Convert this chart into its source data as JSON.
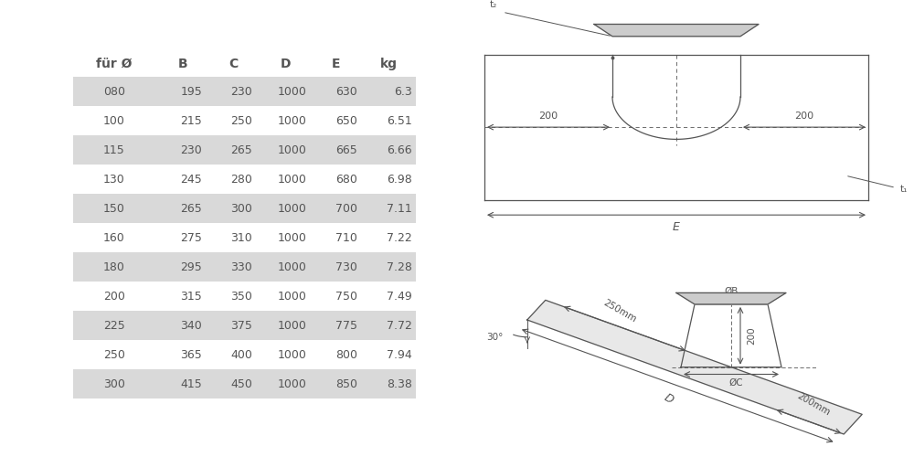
{
  "table_headers": [
    "für Ø",
    "B",
    "C",
    "D",
    "E",
    "kg"
  ],
  "table_rows": [
    [
      "080",
      "195",
      "230",
      "1000",
      "630",
      "6.3"
    ],
    [
      "100",
      "215",
      "250",
      "1000",
      "650",
      "6.51"
    ],
    [
      "115",
      "230",
      "265",
      "1000",
      "665",
      "6.66"
    ],
    [
      "130",
      "245",
      "280",
      "1000",
      "680",
      "6.98"
    ],
    [
      "150",
      "265",
      "300",
      "1000",
      "700",
      "7.11"
    ],
    [
      "160",
      "275",
      "310",
      "1000",
      "710",
      "7.22"
    ],
    [
      "180",
      "295",
      "330",
      "1000",
      "730",
      "7.28"
    ],
    [
      "200",
      "315",
      "350",
      "1000",
      "750",
      "7.49"
    ],
    [
      "225",
      "340",
      "375",
      "1000",
      "775",
      "7.72"
    ],
    [
      "250",
      "365",
      "400",
      "1000",
      "800",
      "7.94"
    ],
    [
      "300",
      "415",
      "450",
      "1000",
      "850",
      "8.38"
    ]
  ],
  "shaded_rows": [
    0,
    2,
    4,
    6,
    8,
    10
  ],
  "row_bg_shaded": "#d9d9d9",
  "text_color": "#555555",
  "line_color": "#555555",
  "bg_color": "#ffffff"
}
